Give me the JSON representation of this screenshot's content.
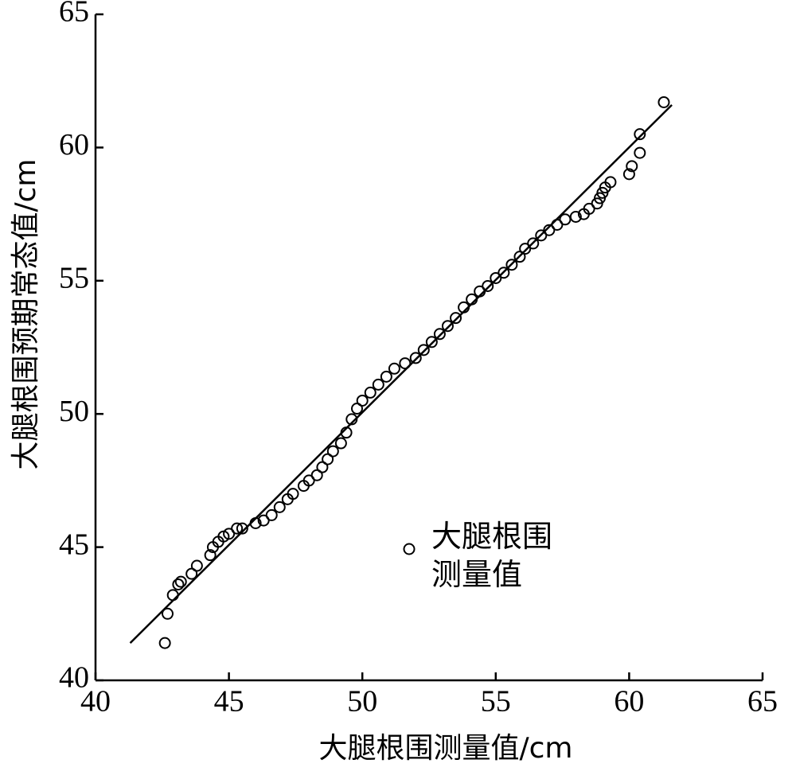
{
  "chart_data": {
    "type": "scatter",
    "x_label": "大腿根围测量值/cm",
    "y_label": "大腿根围预期常态值/cm",
    "xlim": [
      40,
      65
    ],
    "xticks": [
      40,
      45,
      50,
      55,
      60,
      65
    ],
    "ylim": [
      40,
      65
    ],
    "yticks": [
      40,
      45,
      50,
      55,
      60,
      65
    ],
    "legend": "center-right",
    "series": [
      {
        "name": "大腿根围测量值",
        "type": "scatter",
        "color": "#000000",
        "x": [
          42.6,
          42.7,
          42.9,
          43.1,
          43.2,
          43.6,
          43.8,
          44.3,
          44.4,
          44.6,
          44.8,
          45.0,
          45.3,
          45.5,
          46.0,
          46.3,
          46.6,
          46.9,
          47.2,
          47.4,
          47.8,
          48.0,
          48.3,
          48.5,
          48.7,
          48.9,
          49.2,
          49.4,
          49.6,
          49.8,
          50.0,
          50.3,
          50.6,
          50.9,
          51.2,
          51.6,
          52.0,
          52.3,
          52.6,
          52.9,
          53.2,
          53.5,
          53.8,
          54.1,
          54.4,
          54.7,
          55.0,
          55.3,
          55.6,
          55.9,
          56.1,
          56.4,
          56.7,
          57.0,
          57.3,
          57.6,
          58.0,
          58.3,
          58.5,
          58.8,
          58.9,
          59.0,
          59.1,
          59.3,
          60.0,
          60.1,
          60.4,
          60.4,
          61.3
        ],
        "values": [
          41.4,
          42.5,
          43.2,
          43.6,
          43.7,
          44.0,
          44.3,
          44.7,
          45.0,
          45.2,
          45.4,
          45.5,
          45.7,
          45.7,
          45.9,
          46.0,
          46.2,
          46.5,
          46.8,
          47.0,
          47.3,
          47.5,
          47.7,
          48.0,
          48.3,
          48.6,
          48.9,
          49.3,
          49.8,
          50.2,
          50.5,
          50.8,
          51.1,
          51.4,
          51.7,
          51.9,
          52.1,
          52.4,
          52.7,
          53.0,
          53.3,
          53.6,
          54.0,
          54.3,
          54.6,
          54.8,
          55.1,
          55.3,
          55.6,
          55.9,
          56.2,
          56.4,
          56.7,
          56.9,
          57.1,
          57.3,
          57.4,
          57.5,
          57.7,
          57.9,
          58.1,
          58.3,
          58.5,
          58.7,
          59.0,
          59.3,
          59.8,
          60.5,
          61.7
        ]
      },
      {
        "type": "line",
        "color": "#000000",
        "x": [
          41.3,
          61.6
        ],
        "values": [
          41.4,
          61.6
        ]
      }
    ]
  }
}
